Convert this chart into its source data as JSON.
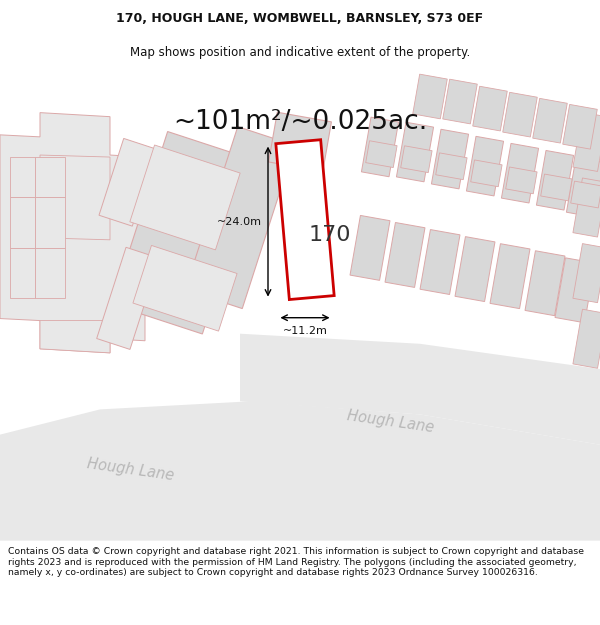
{
  "title_line1": "170, HOUGH LANE, WOMBWELL, BARNSLEY, S73 0EF",
  "title_line2": "Map shows position and indicative extent of the property.",
  "area_text": "~101m²/~0.025ac.",
  "label_170": "170",
  "dim_width": "~11.2m",
  "dim_height": "~24.0m",
  "road_label_diag": "Hough Lane",
  "road_label_lower": "Hough Lane",
  "footer_text": "Contains OS data © Crown copyright and database right 2021. This information is subject to Crown copyright and database rights 2023 and is reproduced with the permission of HM Land Registry. The polygons (including the associated geometry, namely x, y co-ordinates) are subject to Crown copyright and database rights 2023 Ordnance Survey 100026316.",
  "bg_color": "#ffffff",
  "map_bg": "#f7f7f7",
  "bld_fill": "#e8e8e8",
  "bld_edge": "#dba8a8",
  "hi_fill": "#ffffff",
  "hi_edge": "#cc0000",
  "road_fill": "#e0e0e0",
  "title_fs": 9,
  "area_fs": 19,
  "lbl_fs": 16,
  "dim_fs": 8,
  "road_fs": 10.5,
  "footer_fs": 6.7
}
